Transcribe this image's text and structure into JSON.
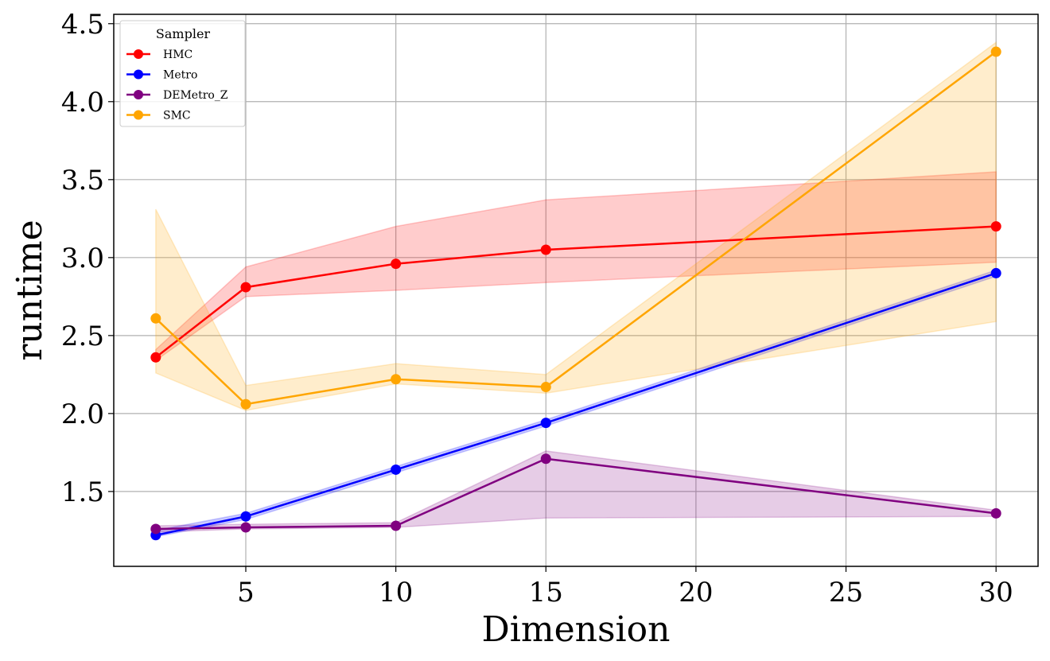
{
  "chart_data": {
    "type": "line",
    "xlabel": "Dimension",
    "ylabel": "runtime",
    "x": [
      2,
      5,
      10,
      15,
      30
    ],
    "xlim": [
      0.6,
      31.4
    ],
    "ylim": [
      1.02,
      4.56
    ],
    "xticks": [
      5,
      10,
      15,
      20,
      25,
      30
    ],
    "yticks": [
      1.5,
      2.0,
      2.5,
      3.0,
      3.5,
      4.0,
      4.5
    ],
    "xtick_labels": [
      "5",
      "10",
      "15",
      "20",
      "25",
      "30"
    ],
    "ytick_labels": [
      "1.5",
      "2.0",
      "2.5",
      "3.0",
      "3.5",
      "4.0",
      "4.5"
    ],
    "grid": true,
    "legend": {
      "title": "Sampler",
      "placement": "top-left"
    },
    "series": [
      {
        "name": "HMC",
        "color": "#ff0000",
        "values": [
          2.36,
          2.81,
          2.96,
          3.05,
          3.2
        ],
        "lower": [
          2.34,
          2.75,
          2.79,
          2.84,
          2.97
        ],
        "upper": [
          2.41,
          2.94,
          3.2,
          3.37,
          3.55
        ]
      },
      {
        "name": "Metro",
        "color": "#0000ff",
        "values": [
          1.22,
          1.34,
          1.64,
          1.94,
          2.9
        ],
        "lower": [
          1.21,
          1.32,
          1.62,
          1.92,
          2.88
        ],
        "upper": [
          1.25,
          1.36,
          1.66,
          1.96,
          2.92
        ]
      },
      {
        "name": "DEMetro_Z",
        "color": "#800080",
        "values": [
          1.26,
          1.27,
          1.28,
          1.71,
          1.36
        ],
        "lower": [
          1.24,
          1.26,
          1.27,
          1.33,
          1.34
        ],
        "upper": [
          1.28,
          1.29,
          1.3,
          1.76,
          1.38
        ]
      },
      {
        "name": "SMC",
        "color": "#ffa500",
        "values": [
          2.61,
          2.06,
          2.22,
          2.17,
          4.32
        ],
        "lower": [
          2.26,
          2.02,
          2.19,
          2.13,
          2.59
        ],
        "upper": [
          3.31,
          2.18,
          2.32,
          2.25,
          4.38
        ]
      }
    ]
  }
}
